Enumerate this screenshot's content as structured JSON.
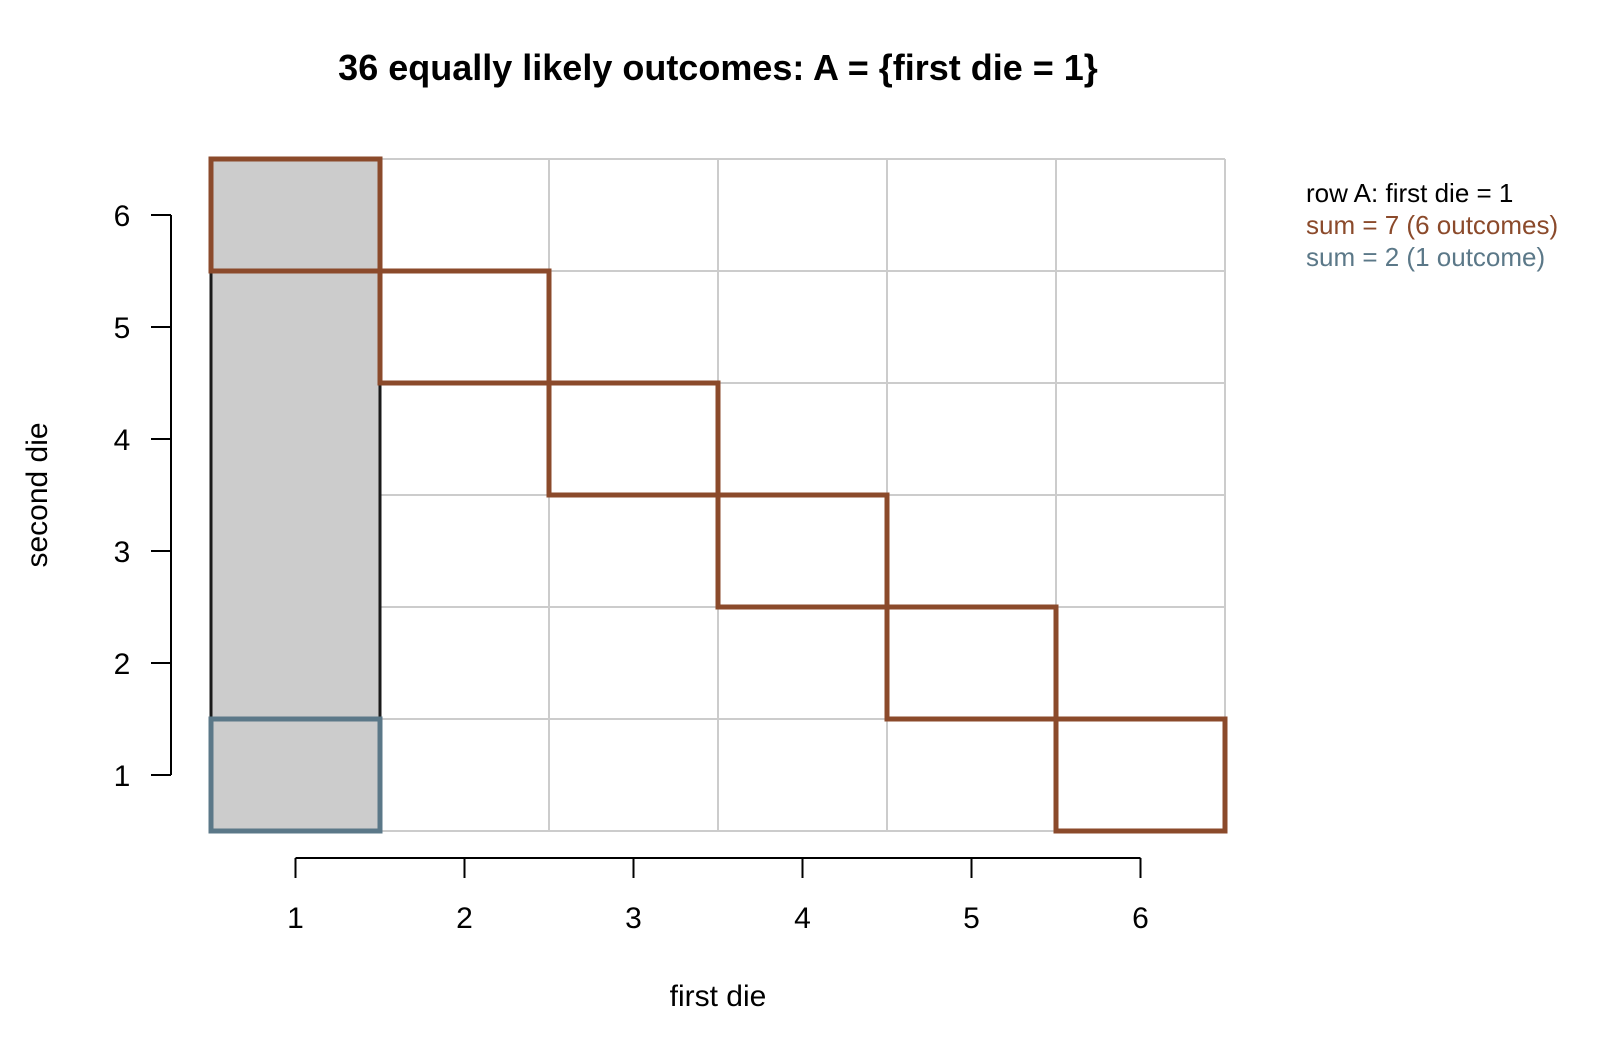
{
  "colors": {
    "grid": "#cccccc",
    "event_fill": "#cccccc",
    "event_border": "#1a1a1a",
    "sum7": "#8b4a2b",
    "sum2": "#5b7888",
    "axis": "#000000"
  },
  "chart_data": {
    "type": "heatmap",
    "title": "36 equally likely outcomes: A = {first die = 1}",
    "xlabel": "first die",
    "ylabel": "second die",
    "x_ticks": [
      1,
      2,
      3,
      4,
      5,
      6
    ],
    "y_ticks": [
      1,
      2,
      3,
      4,
      5,
      6
    ],
    "xlim": [
      0.5,
      6.5
    ],
    "ylim": [
      0.5,
      6.5
    ],
    "grid": true,
    "legend_position": "top-right",
    "event_A": {
      "label": "row A: first die = 1",
      "cells": [
        [
          1,
          1
        ],
        [
          1,
          2
        ],
        [
          1,
          3
        ],
        [
          1,
          4
        ],
        [
          1,
          5
        ],
        [
          1,
          6
        ]
      ]
    },
    "series": [
      {
        "name": "sum = 7 (6 outcomes)",
        "color_key": "sum7",
        "cells": [
          [
            1,
            6
          ],
          [
            2,
            5
          ],
          [
            3,
            4
          ],
          [
            4,
            3
          ],
          [
            5,
            2
          ],
          [
            6,
            1
          ]
        ]
      },
      {
        "name": "sum = 2 (1 outcome)",
        "color_key": "sum2",
        "cells": [
          [
            1,
            1
          ]
        ]
      }
    ]
  }
}
